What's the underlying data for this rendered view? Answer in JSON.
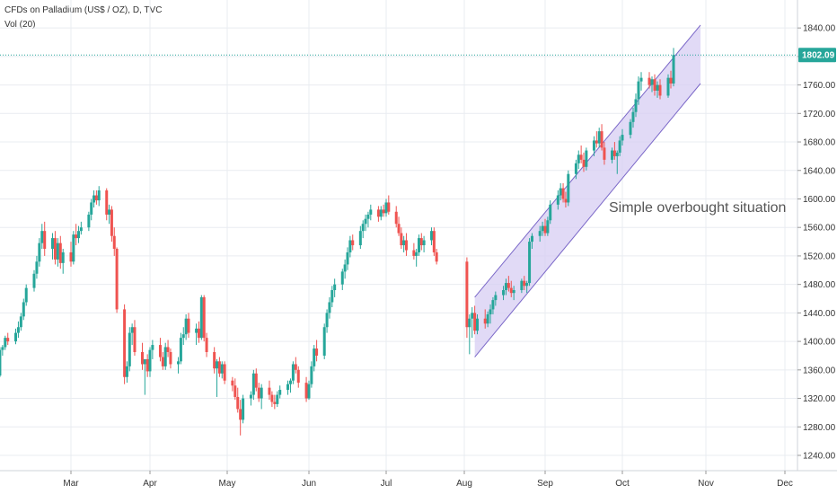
{
  "header": {
    "title": "CFDs on Palladium (US$ / OZ), D, TVC",
    "indicator": "Vol (20)"
  },
  "colors": {
    "up": "#26a69a",
    "down": "#ef5350",
    "grid": "#e9ecf1",
    "price_line": "#26a69a",
    "channel_fill": "#d7cdf3",
    "channel_stroke": "#7b68c8",
    "axis_text": "#333333"
  },
  "chart_data": {
    "type": "candlestick",
    "ylim": [
      1220,
      1860
    ],
    "y_ticks": [
      "1240.00",
      "1280.00",
      "1320.00",
      "1360.00",
      "1400.00",
      "1440.00",
      "1480.00",
      "1520.00",
      "1560.00",
      "1600.00",
      "1640.00",
      "1680.00",
      "1720.00",
      "1760.00",
      "1800.00",
      "1840.00"
    ],
    "x_ticks": [
      "Mar",
      "Apr",
      "May",
      "Jun",
      "Jul",
      "Aug",
      "Sep",
      "Oct",
      "Nov",
      "Dec"
    ],
    "last_price": "1802.09",
    "annotation": "Simple overbought situation",
    "channel": {
      "start_date": "Aug 5",
      "end_date": "Oct 30",
      "upper": [
        1462,
        1844
      ],
      "lower": [
        1378,
        1762
      ]
    },
    "candles": [
      [
        "Feb 1",
        1378,
        1385,
        1348,
        1352
      ],
      [
        "Feb 2",
        1352,
        1392,
        1350,
        1388
      ],
      [
        "Feb 3",
        1388,
        1395,
        1380,
        1392
      ],
      [
        "Feb 4",
        1392,
        1408,
        1388,
        1405
      ],
      [
        "Feb 5",
        1405,
        1412,
        1395,
        1400
      ],
      [
        "Feb 8",
        1400,
        1418,
        1396,
        1412
      ],
      [
        "Feb 9",
        1412,
        1428,
        1405,
        1420
      ],
      [
        "Feb 10",
        1420,
        1440,
        1415,
        1435
      ],
      [
        "Feb 11",
        1435,
        1460,
        1430,
        1455
      ],
      [
        "Feb 12",
        1455,
        1480,
        1450,
        1475
      ],
      [
        "Feb 15",
        1475,
        1500,
        1470,
        1495
      ],
      [
        "Feb 16",
        1495,
        1520,
        1488,
        1512
      ],
      [
        "Feb 17",
        1512,
        1545,
        1505,
        1538
      ],
      [
        "Feb 18",
        1538,
        1565,
        1530,
        1555
      ],
      [
        "Feb 19",
        1555,
        1568,
        1520,
        1530
      ],
      [
        "Feb 22",
        1530,
        1552,
        1515,
        1545
      ],
      [
        "Feb 23",
        1545,
        1555,
        1508,
        1515
      ],
      [
        "Feb 24",
        1515,
        1545,
        1505,
        1538
      ],
      [
        "Feb 25",
        1538,
        1548,
        1502,
        1510
      ],
      [
        "Feb 26",
        1510,
        1530,
        1495,
        1525
      ],
      [
        "Mar 1",
        1525,
        1540,
        1505,
        1512
      ],
      [
        "Mar 2",
        1512,
        1555,
        1508,
        1550
      ],
      [
        "Mar 3",
        1550,
        1565,
        1535,
        1545
      ],
      [
        "Mar 4",
        1545,
        1562,
        1538,
        1555
      ],
      [
        "Mar 5",
        1555,
        1568,
        1550,
        1560
      ],
      [
        "Mar 8",
        1560,
        1582,
        1555,
        1578
      ],
      [
        "Mar 9",
        1578,
        1600,
        1570,
        1595
      ],
      [
        "Mar 10",
        1595,
        1612,
        1588,
        1605
      ],
      [
        "Mar 11",
        1605,
        1612,
        1592,
        1598
      ],
      [
        "Mar 12",
        1598,
        1618,
        1590,
        1612
      ],
      [
        "Mar 15",
        1612,
        1615,
        1570,
        1578
      ],
      [
        "Mar 16",
        1578,
        1592,
        1565,
        1585
      ],
      [
        "Mar 17",
        1585,
        1590,
        1540,
        1548
      ],
      [
        "Mar 18",
        1548,
        1560,
        1520,
        1530
      ],
      [
        "Mar 19",
        1530,
        1532,
        1440,
        1445
      ],
      [
        "Mar 22",
        1445,
        1452,
        1340,
        1350
      ],
      [
        "Mar 23",
        1350,
        1372,
        1342,
        1365
      ],
      [
        "Mar 24",
        1365,
        1420,
        1358,
        1412
      ],
      [
        "Mar 25",
        1412,
        1425,
        1395,
        1420
      ],
      [
        "Mar 26",
        1420,
        1430,
        1380,
        1385
      ],
      [
        "Mar 29",
        1385,
        1398,
        1360,
        1368
      ],
      [
        "Mar 30",
        1368,
        1375,
        1325,
        1375
      ],
      [
        "Mar 31",
        1375,
        1382,
        1350,
        1358
      ],
      [
        "Apr 1",
        1358,
        1392,
        1350,
        1388
      ],
      [
        "Apr 2",
        1388,
        1402,
        1375,
        1395
      ],
      [
        "Apr 5",
        1395,
        1405,
        1372,
        1378
      ],
      [
        "Apr 6",
        1378,
        1385,
        1360,
        1365
      ],
      [
        "Apr 7",
        1365,
        1398,
        1360,
        1392
      ],
      [
        "Apr 8",
        1392,
        1402,
        1378,
        1385
      ],
      [
        "Apr 9",
        1385,
        1390,
        1362,
        1368
      ],
      [
        "Apr 12",
        1368,
        1378,
        1355,
        1372
      ],
      [
        "Apr 13",
        1372,
        1412,
        1368,
        1405
      ],
      [
        "Apr 14",
        1405,
        1420,
        1395,
        1410
      ],
      [
        "Apr 15",
        1410,
        1438,
        1402,
        1432
      ],
      [
        "Apr 16",
        1432,
        1440,
        1405,
        1412
      ],
      [
        "Apr 19",
        1412,
        1425,
        1395,
        1418
      ],
      [
        "Apr 20",
        1418,
        1428,
        1398,
        1405
      ],
      [
        "Apr 21",
        1405,
        1465,
        1402,
        1462
      ],
      [
        "Apr 22",
        1462,
        1465,
        1400,
        1405
      ],
      [
        "Apr 23",
        1405,
        1412,
        1378,
        1385
      ],
      [
        "Apr 26",
        1385,
        1392,
        1355,
        1362
      ],
      [
        "Apr 27",
        1362,
        1375,
        1322,
        1372
      ],
      [
        "Apr 28",
        1372,
        1378,
        1350,
        1355
      ],
      [
        "Apr 29",
        1355,
        1372,
        1348,
        1368
      ],
      [
        "Apr 30",
        1368,
        1372,
        1340,
        1345
      ],
      [
        "May 3",
        1345,
        1350,
        1330,
        1338
      ],
      [
        "May 4",
        1338,
        1348,
        1318,
        1322
      ],
      [
        "May 5",
        1322,
        1335,
        1300,
        1305
      ],
      [
        "May 6",
        1305,
        1318,
        1268,
        1290
      ],
      [
        "May 7",
        1290,
        1325,
        1285,
        1320
      ],
      [
        "May 10",
        1320,
        1330,
        1310,
        1325
      ],
      [
        "May 11",
        1325,
        1360,
        1318,
        1355
      ],
      [
        "May 12",
        1355,
        1362,
        1330,
        1335
      ],
      [
        "May 13",
        1335,
        1342,
        1315,
        1320
      ],
      [
        "May 14",
        1320,
        1340,
        1305,
        1335
      ],
      [
        "May 17",
        1335,
        1345,
        1318,
        1325
      ],
      [
        "May 18",
        1325,
        1330,
        1308,
        1315
      ],
      [
        "May 19",
        1315,
        1325,
        1305,
        1312
      ],
      [
        "May 20",
        1312,
        1330,
        1308,
        1325
      ],
      [
        "May 21",
        1325,
        1338,
        1320,
        1332
      ],
      [
        "May 24",
        1332,
        1345,
        1325,
        1340
      ],
      [
        "May 25",
        1340,
        1348,
        1328,
        1345
      ],
      [
        "May 26",
        1345,
        1372,
        1340,
        1368
      ],
      [
        "May 27",
        1368,
        1378,
        1355,
        1360
      ],
      [
        "May 28",
        1360,
        1365,
        1335,
        1342
      ],
      [
        "May 31",
        1342,
        1350,
        1315,
        1320
      ],
      [
        "Jun 1",
        1320,
        1345,
        1318,
        1340
      ],
      [
        "Jun 2",
        1340,
        1372,
        1335,
        1365
      ],
      [
        "Jun 3",
        1365,
        1395,
        1358,
        1390
      ],
      [
        "Jun 4",
        1390,
        1402,
        1372,
        1380
      ],
      [
        "Jun 7",
        1380,
        1425,
        1375,
        1420
      ],
      [
        "Jun 8",
        1420,
        1445,
        1412,
        1440
      ],
      [
        "Jun 9",
        1440,
        1462,
        1432,
        1455
      ],
      [
        "Jun 10",
        1455,
        1478,
        1448,
        1472
      ],
      [
        "Jun 11",
        1472,
        1488,
        1462,
        1480
      ],
      [
        "Jun 14",
        1480,
        1502,
        1472,
        1498
      ],
      [
        "Jun 15",
        1498,
        1515,
        1488,
        1508
      ],
      [
        "Jun 16",
        1508,
        1532,
        1500,
        1525
      ],
      [
        "Jun 17",
        1525,
        1548,
        1518,
        1542
      ],
      [
        "Jun 18",
        1542,
        1550,
        1528,
        1535
      ],
      [
        "Jun 21",
        1535,
        1562,
        1530,
        1555
      ],
      [
        "Jun 22",
        1555,
        1570,
        1545,
        1565
      ],
      [
        "Jun 23",
        1565,
        1578,
        1555,
        1572
      ],
      [
        "Jun 24",
        1572,
        1582,
        1560,
        1578
      ],
      [
        "Jun 25",
        1578,
        1592,
        1570,
        1585
      ],
      [
        "Jun 28",
        1585,
        1590,
        1568,
        1575
      ],
      [
        "Jun 29",
        1575,
        1590,
        1570,
        1585
      ],
      [
        "Jun 30",
        1585,
        1592,
        1575,
        1580
      ],
      [
        "Jul 1",
        1580,
        1600,
        1575,
        1595
      ],
      [
        "Jul 2",
        1595,
        1605,
        1578,
        1582
      ],
      [
        "Jul 5",
        1582,
        1590,
        1560,
        1565
      ],
      [
        "Jul 6",
        1565,
        1575,
        1548,
        1552
      ],
      [
        "Jul 7",
        1552,
        1560,
        1530,
        1535
      ],
      [
        "Jul 8",
        1535,
        1548,
        1525,
        1542
      ],
      [
        "Jul 9",
        1542,
        1552,
        1520,
        1528
      ],
      [
        "Jul 12",
        1528,
        1538,
        1515,
        1520
      ],
      [
        "Jul 13",
        1520,
        1530,
        1505,
        1525
      ],
      [
        "Jul 14",
        1525,
        1550,
        1520,
        1545
      ],
      [
        "Jul 15",
        1545,
        1552,
        1528,
        1535
      ],
      [
        "Jul 16",
        1535,
        1548,
        1525,
        1542
      ],
      [
        "Jul 19",
        1542,
        1560,
        1535,
        1555
      ],
      [
        "Jul 20",
        1555,
        1560,
        1520,
        1525
      ],
      [
        "Jul 21",
        1525,
        1530,
        1508,
        1512
      ],
      [
        "Aug 2",
        1512,
        1518,
        1405,
        1420
      ],
      [
        "Aug 3",
        1420,
        1438,
        1382,
        1432
      ],
      [
        "Aug 4",
        1432,
        1448,
        1405,
        1440
      ],
      [
        "Aug 5",
        1440,
        1450,
        1410,
        1415
      ],
      [
        "Aug 6",
        1415,
        1438,
        1410,
        1432
      ],
      [
        "Aug 9",
        1432,
        1445,
        1418,
        1425
      ],
      [
        "Aug 10",
        1425,
        1442,
        1420,
        1438
      ],
      [
        "Aug 11",
        1438,
        1452,
        1425,
        1445
      ],
      [
        "Aug 12",
        1445,
        1462,
        1438,
        1458
      ],
      [
        "Aug 13",
        1458,
        1470,
        1450,
        1465
      ],
      [
        "Aug 16",
        1465,
        1478,
        1458,
        1472
      ],
      [
        "Aug 17",
        1472,
        1488,
        1465,
        1482
      ],
      [
        "Aug 18",
        1482,
        1492,
        1470,
        1475
      ],
      [
        "Aug 19",
        1475,
        1485,
        1462,
        1468
      ],
      [
        "Aug 20",
        1468,
        1478,
        1458,
        1472
      ],
      [
        "Aug 23",
        1472,
        1488,
        1468,
        1485
      ],
      [
        "Aug 24",
        1485,
        1492,
        1472,
        1478
      ],
      [
        "Aug 25",
        1478,
        1485,
        1468,
        1482
      ],
      [
        "Aug 26",
        1482,
        1545,
        1478,
        1540
      ],
      [
        "Aug 27",
        1540,
        1552,
        1530,
        1548
      ],
      [
        "Aug 30",
        1548,
        1562,
        1540,
        1555
      ],
      [
        "Aug 31",
        1555,
        1568,
        1548,
        1562
      ],
      [
        "Sep 1",
        1562,
        1572,
        1548,
        1552
      ],
      [
        "Sep 2",
        1552,
        1575,
        1548,
        1570
      ],
      [
        "Sep 3",
        1570,
        1598,
        1565,
        1592
      ],
      [
        "Sep 6",
        1592,
        1612,
        1585,
        1605
      ],
      [
        "Sep 7",
        1605,
        1622,
        1598,
        1615
      ],
      [
        "Sep 8",
        1615,
        1622,
        1595,
        1600
      ],
      [
        "Sep 9",
        1600,
        1610,
        1588,
        1595
      ],
      [
        "Sep 10",
        1595,
        1640,
        1590,
        1635
      ],
      [
        "Sep 13",
        1635,
        1655,
        1628,
        1650
      ],
      [
        "Sep 14",
        1650,
        1668,
        1642,
        1662
      ],
      [
        "Sep 15",
        1662,
        1675,
        1650,
        1655
      ],
      [
        "Sep 16",
        1655,
        1665,
        1638,
        1645
      ],
      [
        "Sep 17",
        1645,
        1672,
        1640,
        1668
      ],
      [
        "Sep 20",
        1668,
        1688,
        1660,
        1682
      ],
      [
        "Sep 21",
        1682,
        1695,
        1672,
        1678
      ],
      [
        "Sep 22",
        1678,
        1700,
        1672,
        1695
      ],
      [
        "Sep 23",
        1695,
        1705,
        1668,
        1672
      ],
      [
        "Sep 24",
        1672,
        1680,
        1648,
        1655
      ],
      [
        "Sep 27",
        1655,
        1672,
        1650,
        1668
      ],
      [
        "Sep 28",
        1668,
        1680,
        1655,
        1660
      ],
      [
        "Sep 29",
        1660,
        1668,
        1635,
        1665
      ],
      [
        "Sep 30",
        1665,
        1688,
        1660,
        1682
      ],
      [
        "Oct 1",
        1682,
        1698,
        1675,
        1690
      ],
      [
        "Oct 4",
        1690,
        1712,
        1685,
        1708
      ],
      [
        "Oct 5",
        1708,
        1728,
        1700,
        1722
      ],
      [
        "Oct 6",
        1722,
        1748,
        1715,
        1740
      ],
      [
        "Oct 7",
        1740,
        1772,
        1732,
        1765
      ],
      [
        "Oct 8",
        1765,
        1778,
        1752,
        1770
      ],
      [
        "Oct 11",
        1770,
        1778,
        1755,
        1760
      ],
      [
        "Oct 12",
        1760,
        1772,
        1750,
        1768
      ],
      [
        "Oct 13",
        1768,
        1775,
        1745,
        1752
      ],
      [
        "Oct 14",
        1752,
        1765,
        1742,
        1760
      ],
      [
        "Oct 15",
        1760,
        1768,
        1740,
        1745
      ],
      [
        "Oct 18",
        1745,
        1775,
        1742,
        1770
      ],
      [
        "Oct 19",
        1770,
        1780,
        1755,
        1762
      ],
      [
        "Oct 20",
        1762,
        1812,
        1758,
        1802
      ]
    ]
  }
}
